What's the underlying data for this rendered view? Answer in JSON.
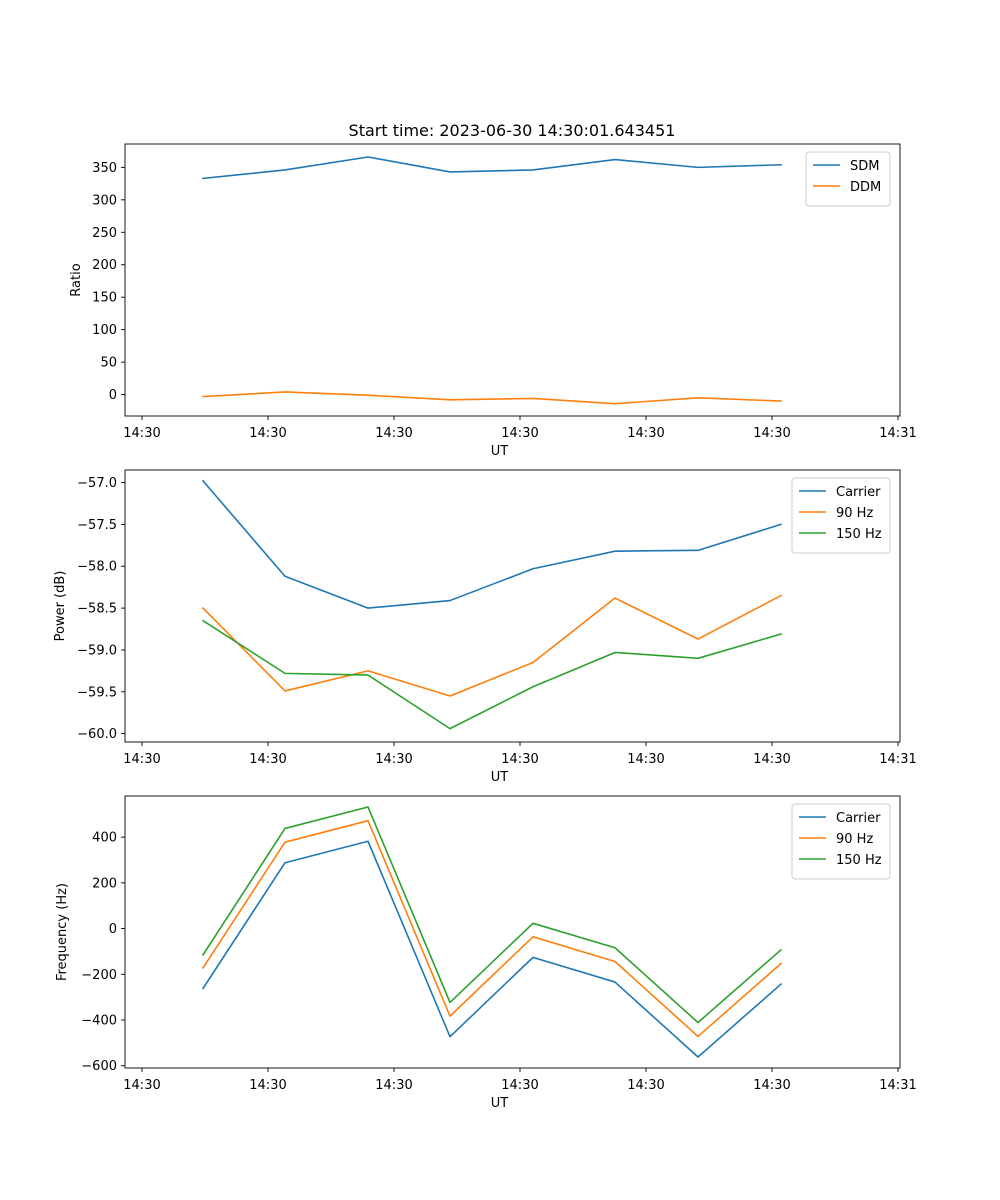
{
  "figure_title": "Start time: 2023-06-30 14:30:01.643451",
  "chart_data": [
    {
      "type": "line",
      "title": "Start time: 2023-06-30 14:30:01.643451",
      "xlabel": "UT",
      "ylabel": "Ratio",
      "x_tick_labels": [
        "14:30",
        "14:30",
        "14:30",
        "14:30",
        "14:30",
        "14:30",
        "14:31"
      ],
      "y_ticks": [
        0,
        50,
        100,
        150,
        200,
        250,
        300,
        350
      ],
      "ylim": [
        -33,
        386
      ],
      "grid": false,
      "legend_position": "top-right",
      "series": [
        {
          "name": "SDM",
          "color": "#1f77b4",
          "values": [
            333,
            346,
            366,
            343,
            346,
            362,
            350,
            354
          ]
        },
        {
          "name": "DDM",
          "color": "#ff7f0e",
          "values": [
            -3,
            4,
            -1,
            -8,
            -6,
            -14,
            -5,
            -10
          ]
        }
      ]
    },
    {
      "type": "line",
      "title": "",
      "xlabel": "UT",
      "ylabel": "Power (dB)",
      "x_tick_labels": [
        "14:30",
        "14:30",
        "14:30",
        "14:30",
        "14:30",
        "14:30",
        "14:31"
      ],
      "y_ticks": [
        -60.0,
        -59.5,
        -59.0,
        -58.5,
        -58.0,
        -57.5,
        -57.0
      ],
      "y_tick_labels": [
        "−60.0",
        "−59.5",
        "−59.0",
        "−58.5",
        "−58.0",
        "−57.5",
        "−57.0"
      ],
      "ylim": [
        -60.1,
        -56.85
      ],
      "grid": false,
      "legend_position": "top-right",
      "series": [
        {
          "name": "Carrier",
          "color": "#1f77b4",
          "values": [
            -56.98,
            -58.12,
            -58.5,
            -58.41,
            -58.03,
            -57.82,
            -57.81,
            -57.5
          ]
        },
        {
          "name": "90 Hz",
          "color": "#ff7f0e",
          "values": [
            -58.5,
            -59.49,
            -59.25,
            -59.55,
            -59.15,
            -58.38,
            -58.87,
            -58.35
          ]
        },
        {
          "name": "150 Hz",
          "color": "#2ca02c",
          "values": [
            -58.65,
            -59.28,
            -59.3,
            -59.94,
            -59.44,
            -59.03,
            -59.1,
            -58.81
          ]
        }
      ]
    },
    {
      "type": "line",
      "title": "",
      "xlabel": "UT",
      "ylabel": "Frequency (Hz)",
      "x_tick_labels": [
        "14:30",
        "14:30",
        "14:30",
        "14:30",
        "14:30",
        "14:30",
        "14:31"
      ],
      "y_ticks": [
        -600,
        -400,
        -200,
        0,
        200,
        400
      ],
      "y_tick_labels": [
        "−600",
        "−400",
        "−200",
        "0",
        "200",
        "400"
      ],
      "ylim": [
        -610,
        580
      ],
      "grid": false,
      "legend_position": "top-right",
      "series": [
        {
          "name": "Carrier",
          "color": "#1f77b4",
          "values": [
            -262,
            288,
            382,
            -473,
            -126,
            -234,
            -562,
            -243
          ]
        },
        {
          "name": "90 Hz",
          "color": "#ff7f0e",
          "values": [
            -172,
            378,
            472,
            -383,
            -36,
            -144,
            -472,
            -153
          ]
        },
        {
          "name": "150 Hz",
          "color": "#2ca02c",
          "values": [
            -115,
            438,
            532,
            -323,
            23,
            -84,
            -411,
            -93
          ]
        }
      ]
    }
  ]
}
